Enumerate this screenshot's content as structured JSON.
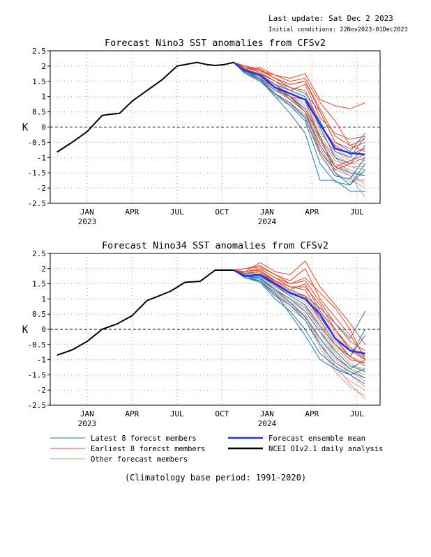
{
  "header": {
    "last_update": "Last update: Sat Dec 2 2023",
    "initial_conditions": "Initial conditions: 22Nov2023-01Dec2023"
  },
  "chart_data": [
    {
      "type": "line",
      "title": "Forecast Nino3 SST anomalies from CFSv2",
      "ylabel": "K",
      "ylim": [
        -2.5,
        2.5
      ],
      "yticks": [
        "2.5",
        "2",
        "1.5",
        "1",
        "0.5",
        "0",
        "-0.5",
        "-1",
        "-1.5",
        "-2",
        "-2.5"
      ],
      "xlim": [
        "2022-11",
        "2024-09"
      ],
      "xticks": [
        {
          "label": "JAN",
          "sub": "2023",
          "month": "2023-01"
        },
        {
          "label": "APR",
          "sub": "",
          "month": "2023-04"
        },
        {
          "label": "JUL",
          "sub": "",
          "month": "2023-07"
        },
        {
          "label": "OCT",
          "sub": "",
          "month": "2023-10"
        },
        {
          "label": "JAN",
          "sub": "2024",
          "month": "2024-01"
        },
        {
          "label": "APR",
          "sub": "",
          "month": "2024-04"
        },
        {
          "label": "JUL",
          "sub": "",
          "month": "2024-07"
        }
      ],
      "grid": true,
      "zero_line": true,
      "observed": {
        "name": "NCEI OIv2.1 daily analysis",
        "color": "#000000",
        "x": [
          "2022-11-15",
          "2022-12-15",
          "2023-01-15",
          "2023-02-15",
          "2023-03-01",
          "2023-03-20",
          "2023-04-15",
          "2023-05-15",
          "2023-06-15",
          "2023-07-15",
          "2023-08-01",
          "2023-08-25",
          "2023-09-15",
          "2023-10-01",
          "2023-10-20",
          "2023-11-08"
        ],
        "y": [
          -0.82,
          -0.5,
          -0.15,
          0.38,
          0.42,
          0.45,
          0.85,
          1.2,
          1.55,
          2.0,
          2.05,
          2.12,
          2.05,
          2.02,
          2.05,
          2.12
        ]
      },
      "ensemble_mean": {
        "name": "Forecast ensemble mean",
        "color": "#2233ee",
        "x": [
          "2023-11-08",
          "2023-12-01",
          "2024-01-01",
          "2024-02-01",
          "2024-03-01",
          "2024-04-01",
          "2024-05-01",
          "2024-06-01",
          "2024-07-01",
          "2024-08-01"
        ],
        "y": [
          2.12,
          1.85,
          1.7,
          1.3,
          1.1,
          0.9,
          0.1,
          -0.7,
          -0.85,
          -0.9
        ]
      },
      "latest_members": {
        "name": "Latest 8 forecst members",
        "color": "#1f77b4",
        "x": [
          "2023-11-08",
          "2023-12-01",
          "2024-01-01",
          "2024-02-01",
          "2024-03-01",
          "2024-04-01",
          "2024-05-01",
          "2024-06-01",
          "2024-07-01",
          "2024-08-01"
        ],
        "members": [
          [
            2.12,
            1.8,
            1.6,
            1.0,
            0.45,
            -0.2,
            -1.75,
            -1.75,
            -2.1,
            -2.1
          ],
          [
            2.12,
            1.8,
            1.55,
            1.2,
            1.0,
            0.5,
            -0.6,
            -1.3,
            -1.5,
            -1.6
          ],
          [
            2.12,
            1.9,
            1.7,
            1.4,
            1.2,
            1.0,
            0.2,
            -0.8,
            -1.0,
            -0.3
          ],
          [
            2.12,
            1.85,
            1.6,
            1.3,
            1.0,
            0.6,
            -0.3,
            -1.5,
            -1.9,
            -1.4
          ],
          [
            2.12,
            1.9,
            1.75,
            1.5,
            1.3,
            1.1,
            0.5,
            -0.5,
            -0.8,
            -0.2
          ],
          [
            2.12,
            1.8,
            1.55,
            1.1,
            0.8,
            0.3,
            -0.9,
            -1.6,
            -1.7,
            -1.0
          ],
          [
            2.12,
            1.85,
            1.7,
            1.4,
            1.2,
            1.0,
            0.0,
            -1.0,
            -1.2,
            -0.6
          ],
          [
            2.12,
            1.75,
            1.5,
            1.1,
            0.7,
            0.2,
            -1.2,
            -1.8,
            -1.9,
            -1.2
          ]
        ]
      },
      "earliest_members": {
        "name": "Earliest 8 forecst members",
        "color": "#ee4422",
        "x": [
          "2023-11-08",
          "2023-12-01",
          "2024-01-01",
          "2024-02-01",
          "2024-03-01",
          "2024-04-01",
          "2024-05-01",
          "2024-06-01",
          "2024-07-01",
          "2024-08-01"
        ],
        "members": [
          [
            2.12,
            1.9,
            1.95,
            1.7,
            1.6,
            1.75,
            0.9,
            0.7,
            0.6,
            0.8
          ],
          [
            2.12,
            2.0,
            1.9,
            1.6,
            1.4,
            1.5,
            0.6,
            -0.3,
            -0.6,
            -0.8
          ],
          [
            2.12,
            1.95,
            1.8,
            1.5,
            1.2,
            1.4,
            0.3,
            -0.2,
            -0.4,
            -0.3
          ],
          [
            2.12,
            2.0,
            1.85,
            1.7,
            1.5,
            1.6,
            0.8,
            0.2,
            -0.6,
            -0.4
          ],
          [
            2.12,
            1.9,
            1.7,
            1.4,
            1.0,
            0.9,
            -0.4,
            -1.3,
            -1.1,
            -0.9
          ],
          [
            2.12,
            2.0,
            1.9,
            1.6,
            1.3,
            1.2,
            0.1,
            -0.6,
            -0.9,
            -0.7
          ],
          [
            2.12,
            1.95,
            1.85,
            1.6,
            1.4,
            1.5,
            0.5,
            -0.5,
            -0.7,
            -0.5
          ],
          [
            2.12,
            1.9,
            1.75,
            1.3,
            0.9,
            0.5,
            -0.8,
            -1.4,
            -1.2,
            -1.0
          ]
        ]
      },
      "other_members": {
        "name": "Other forecast members",
        "color": "#d4a090",
        "x": [
          "2023-11-08",
          "2023-12-01",
          "2024-01-01",
          "2024-02-01",
          "2024-03-01",
          "2024-04-01",
          "2024-05-01",
          "2024-06-01",
          "2024-07-01",
          "2024-08-01"
        ],
        "members": [
          [
            2.12,
            1.8,
            1.6,
            1.2,
            0.9,
            0.6,
            -0.5,
            -1.2,
            -1.4,
            -1.6
          ],
          [
            2.12,
            1.85,
            1.65,
            1.3,
            1.0,
            0.7,
            -0.3,
            -1.0,
            -1.5,
            -1.9
          ],
          [
            2.12,
            1.75,
            1.55,
            1.1,
            0.8,
            0.4,
            -0.7,
            -1.4,
            -1.6,
            -2.3
          ],
          [
            2.12,
            1.9,
            1.7,
            1.4,
            1.1,
            0.9,
            -0.1,
            -0.9,
            -1.2,
            -1.2
          ],
          [
            2.12,
            1.8,
            1.6,
            1.2,
            0.9,
            0.5,
            -0.4,
            -1.1,
            -1.3,
            -1.4
          ],
          [
            2.12,
            1.85,
            1.7,
            1.3,
            1.0,
            0.8,
            -0.2,
            -0.8,
            -1.1,
            -0.9
          ],
          [
            2.12,
            1.75,
            1.5,
            1.0,
            0.7,
            0.3,
            -0.8,
            -1.5,
            -1.8,
            -1.7
          ],
          [
            2.12,
            1.8,
            1.6,
            1.3,
            1.0,
            0.6,
            -0.5,
            -1.2,
            -1.5,
            -1.5
          ],
          [
            2.12,
            1.9,
            1.75,
            1.4,
            1.2,
            1.0,
            0.1,
            -0.7,
            -1.0,
            -1.1
          ],
          [
            2.12,
            1.8,
            1.55,
            1.1,
            0.8,
            0.4,
            -0.6,
            -1.3,
            -1.6,
            -1.8
          ],
          [
            2.12,
            1.85,
            1.6,
            1.25,
            0.95,
            0.6,
            -0.4,
            -1.0,
            -1.3,
            -1.3
          ],
          [
            2.12,
            1.75,
            1.5,
            1.05,
            0.75,
            0.35,
            -0.9,
            -1.6,
            -1.7,
            -2.0
          ]
        ]
      }
    },
    {
      "type": "line",
      "title": "Forecast Nino34 SST anomalies from CFSv2",
      "ylabel": "K",
      "ylim": [
        -2.5,
        2.5
      ],
      "yticks": [
        "2.5",
        "2",
        "1.5",
        "1",
        "0.5",
        "0",
        "-0.5",
        "-1",
        "-1.5",
        "-2",
        "-2.5"
      ],
      "xlim": [
        "2022-11",
        "2024-09"
      ],
      "xticks": [
        {
          "label": "JAN",
          "sub": "2023",
          "month": "2023-01"
        },
        {
          "label": "APR",
          "sub": "",
          "month": "2023-04"
        },
        {
          "label": "JUL",
          "sub": "",
          "month": "2023-07"
        },
        {
          "label": "OCT",
          "sub": "",
          "month": "2023-10"
        },
        {
          "label": "JAN",
          "sub": "2024",
          "month": "2024-01"
        },
        {
          "label": "APR",
          "sub": "",
          "month": "2024-04"
        },
        {
          "label": "JUL",
          "sub": "",
          "month": "2024-07"
        }
      ],
      "grid": true,
      "zero_line": true,
      "observed": {
        "name": "NCEI OIv2.1 daily analysis",
        "color": "#000000",
        "x": [
          "2022-11-15",
          "2022-12-15",
          "2023-01-15",
          "2023-02-15",
          "2023-03-15",
          "2023-04-15",
          "2023-05-15",
          "2023-06-01",
          "2023-07-01",
          "2023-08-01",
          "2023-09-01",
          "2023-10-01",
          "2023-11-08"
        ],
        "y": [
          -0.85,
          -0.68,
          -0.4,
          0.0,
          0.18,
          0.45,
          0.95,
          1.05,
          1.25,
          1.55,
          1.58,
          1.95,
          1.95
        ]
      },
      "ensemble_mean": {
        "name": "Forecast ensemble mean",
        "color": "#2233ee",
        "x": [
          "2023-11-08",
          "2023-12-01",
          "2024-01-01",
          "2024-02-01",
          "2024-03-01",
          "2024-04-01",
          "2024-05-01",
          "2024-06-01",
          "2024-07-01",
          "2024-08-01"
        ],
        "y": [
          1.95,
          1.75,
          1.8,
          1.5,
          1.2,
          1.0,
          0.5,
          -0.3,
          -0.7,
          -0.8
        ]
      },
      "latest_members": {
        "name": "Latest 8 forecst members",
        "color": "#1f77b4",
        "x": [
          "2023-11-08",
          "2023-12-01",
          "2024-01-01",
          "2024-02-01",
          "2024-03-01",
          "2024-04-01",
          "2024-05-01",
          "2024-06-01",
          "2024-07-01",
          "2024-08-01"
        ],
        "members": [
          [
            1.95,
            1.7,
            1.6,
            1.2,
            0.5,
            -0.2,
            -1.0,
            -1.3,
            -1.5,
            -1.8
          ],
          [
            1.95,
            1.75,
            1.7,
            1.3,
            1.0,
            0.6,
            -0.1,
            -0.7,
            -1.2,
            -1.4
          ],
          [
            1.95,
            1.8,
            1.75,
            1.5,
            1.2,
            1.0,
            0.4,
            -0.3,
            -0.9,
            -0.2
          ],
          [
            1.95,
            1.7,
            1.6,
            1.1,
            0.8,
            0.3,
            -0.5,
            -1.1,
            -1.4,
            -1.6
          ],
          [
            1.95,
            1.85,
            1.8,
            1.6,
            1.3,
            1.1,
            0.7,
            0.2,
            -0.3,
            0.6
          ],
          [
            1.95,
            1.75,
            1.65,
            1.3,
            0.9,
            0.4,
            -0.3,
            -0.9,
            -1.3,
            -1.0
          ],
          [
            1.95,
            1.8,
            1.75,
            1.45,
            1.1,
            0.8,
            0.1,
            -0.5,
            -0.9,
            0.0
          ],
          [
            1.95,
            1.7,
            1.55,
            1.0,
            0.6,
            0.0,
            -0.8,
            -1.2,
            -1.5,
            -1.3
          ]
        ]
      },
      "earliest_members": {
        "name": "Earliest 8 forecst members",
        "color": "#ee4422",
        "x": [
          "2023-11-08",
          "2023-12-01",
          "2024-01-01",
          "2024-02-01",
          "2024-03-01",
          "2024-04-01",
          "2024-05-01",
          "2024-06-01",
          "2024-07-01",
          "2024-08-01"
        ],
        "members": [
          [
            1.95,
            1.9,
            2.2,
            1.9,
            1.8,
            2.25,
            1.4,
            0.8,
            0.2,
            -0.5
          ],
          [
            1.95,
            2.0,
            2.1,
            1.8,
            1.6,
            2.0,
            1.0,
            0.4,
            -0.2,
            -0.9
          ],
          [
            1.95,
            1.9,
            2.0,
            1.7,
            1.5,
            1.7,
            1.2,
            0.7,
            0.0,
            -1.0
          ],
          [
            1.95,
            1.85,
            1.9,
            1.6,
            1.3,
            1.5,
            0.6,
            0.0,
            -0.6,
            -1.0
          ],
          [
            1.95,
            2.0,
            2.05,
            1.8,
            1.5,
            1.6,
            0.9,
            0.2,
            -0.4,
            -0.7
          ],
          [
            1.95,
            1.9,
            1.95,
            1.6,
            1.4,
            1.3,
            0.5,
            -0.3,
            -0.9,
            -1.2
          ],
          [
            1.95,
            1.85,
            1.9,
            1.55,
            1.2,
            1.1,
            0.3,
            -0.5,
            -1.0,
            -1.1
          ],
          [
            1.95,
            1.9,
            2.0,
            1.7,
            1.4,
            1.4,
            0.8,
            0.0,
            -0.7,
            -1.0
          ]
        ]
      },
      "other_members": {
        "name": "Other forecast members",
        "color": "#d4a090",
        "x": [
          "2023-11-08",
          "2023-12-01",
          "2024-01-01",
          "2024-02-01",
          "2024-03-01",
          "2024-04-01",
          "2024-05-01",
          "2024-06-01",
          "2024-07-01",
          "2024-08-01"
        ],
        "members": [
          [
            1.95,
            1.75,
            1.7,
            1.3,
            1.0,
            0.7,
            0.0,
            -0.8,
            -1.3,
            -1.6
          ],
          [
            1.95,
            1.8,
            1.75,
            1.4,
            1.1,
            0.8,
            0.2,
            -0.6,
            -1.1,
            -1.4
          ],
          [
            1.95,
            1.7,
            1.6,
            1.2,
            0.8,
            0.4,
            -0.4,
            -1.2,
            -1.8,
            -2.3
          ],
          [
            1.95,
            1.85,
            1.8,
            1.5,
            1.2,
            1.0,
            0.5,
            -0.2,
            -0.7,
            -0.9
          ],
          [
            1.95,
            1.75,
            1.65,
            1.25,
            0.9,
            0.6,
            -0.1,
            -0.9,
            -1.4,
            -1.7
          ],
          [
            1.95,
            1.8,
            1.75,
            1.45,
            1.15,
            0.9,
            0.3,
            -0.4,
            -0.9,
            -1.1
          ],
          [
            1.95,
            1.7,
            1.55,
            1.1,
            0.7,
            0.3,
            -0.6,
            -1.4,
            -1.9,
            -2.2
          ],
          [
            1.95,
            1.8,
            1.7,
            1.35,
            1.0,
            0.7,
            0.1,
            -0.7,
            -1.2,
            -1.3
          ],
          [
            1.95,
            1.85,
            1.85,
            1.55,
            1.25,
            1.05,
            0.6,
            -0.1,
            -0.6,
            -0.8
          ],
          [
            1.95,
            1.75,
            1.6,
            1.2,
            0.85,
            0.5,
            -0.3,
            -1.0,
            -1.5,
            -1.9
          ],
          [
            1.95,
            1.8,
            1.7,
            1.3,
            1.0,
            0.75,
            0.0,
            -0.8,
            -1.3,
            -1.5
          ],
          [
            1.95,
            1.7,
            1.6,
            1.15,
            0.8,
            0.45,
            -0.5,
            -1.3,
            -1.7,
            -2.0
          ]
        ]
      }
    }
  ],
  "legend": {
    "items": [
      {
        "label": "Latest 8 forecst members",
        "color": "#1f77b4",
        "width": 1
      },
      {
        "label": "Earliest 8 forecst members",
        "color": "#ee4422",
        "width": 1
      },
      {
        "label": "Other forecast members",
        "color": "#d4a090",
        "width": 1
      },
      {
        "label": "Forecast ensemble mean",
        "color": "#2233ee",
        "width": 2.5
      },
      {
        "label": "NCEI OIv2.1 daily analysis",
        "color": "#000000",
        "width": 2.5
      }
    ]
  },
  "footer": "(Climatology base period: 1991-2020)"
}
